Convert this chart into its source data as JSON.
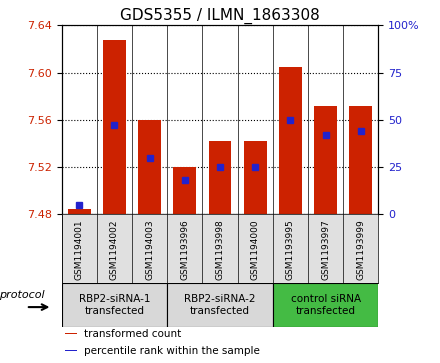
{
  "title": "GDS5355 / ILMN_1863308",
  "samples": [
    "GSM1194001",
    "GSM1194002",
    "GSM1194003",
    "GSM1193996",
    "GSM1193998",
    "GSM1194000",
    "GSM1193995",
    "GSM1193997",
    "GSM1193999"
  ],
  "transformed_counts": [
    7.484,
    7.628,
    7.56,
    7.52,
    7.542,
    7.542,
    7.605,
    7.572,
    7.572
  ],
  "percentile_ranks": [
    5,
    47,
    30,
    18,
    25,
    25,
    50,
    42,
    44
  ],
  "ylim_left": [
    7.48,
    7.64
  ],
  "ylim_right": [
    0,
    100
  ],
  "yticks_left": [
    7.48,
    7.52,
    7.56,
    7.6,
    7.64
  ],
  "yticks_right": [
    0,
    25,
    50,
    75,
    100
  ],
  "groups": [
    {
      "label": "RBP2-siRNA-1\ntransfected",
      "indices": [
        0,
        1,
        2
      ],
      "color": "#d8d8d8"
    },
    {
      "label": "RBP2-siRNA-2\ntransfected",
      "indices": [
        3,
        4,
        5
      ],
      "color": "#d8d8d8"
    },
    {
      "label": "control siRNA\ntransfected",
      "indices": [
        6,
        7,
        8
      ],
      "color": "#44bb44"
    }
  ],
  "bar_color": "#cc2200",
  "percentile_color": "#2222cc",
  "bar_bottom": 7.48,
  "bar_width": 0.65,
  "legend_items": [
    {
      "label": "transformed count",
      "color": "#cc2200"
    },
    {
      "label": "percentile rank within the sample",
      "color": "#2222cc"
    }
  ],
  "title_fontsize": 11,
  "tick_fontsize": 8,
  "label_fontsize": 7.5,
  "sample_label_fontsize": 6.5,
  "group_label_fontsize": 7.5,
  "bg_color": "#e0e0e0",
  "protocol_label": "protocol",
  "grid_color": "#000000"
}
